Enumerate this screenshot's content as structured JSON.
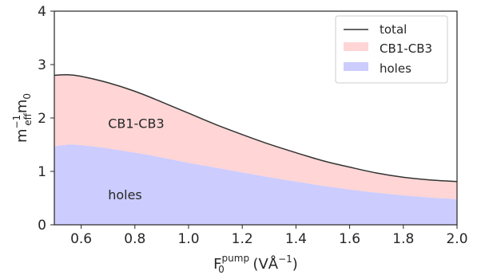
{
  "chart_data": {
    "type": "area",
    "xlabel": {
      "base": "F",
      "sub": "0",
      "sup": "pump",
      "unit_pre": " (VÅ",
      "unit_sup": "−1",
      "unit_post": ")"
    },
    "ylabel": {
      "base": "m",
      "sub": "eff",
      "sup": "−1",
      "tail": "m",
      "tail_sub": "0"
    },
    "xlim": [
      0.5,
      2.0
    ],
    "ylim": [
      0,
      4
    ],
    "xticks": [
      0.6,
      0.8,
      1.0,
      1.2,
      1.4,
      1.6,
      1.8,
      2.0
    ],
    "xtick_labels": [
      "0.6",
      "0.8",
      "1.0",
      "1.2",
      "1.4",
      "1.6",
      "1.8",
      "2.0"
    ],
    "yticks": [
      0,
      1,
      2,
      3,
      4
    ],
    "ytick_labels": [
      "0",
      "1",
      "2",
      "3",
      "4"
    ],
    "x": [
      0.5,
      0.55,
      0.6,
      0.7,
      0.8,
      0.9,
      1.0,
      1.1,
      1.2,
      1.3,
      1.4,
      1.5,
      1.6,
      1.7,
      1.8,
      1.9,
      2.0
    ],
    "series": [
      {
        "name": "holes",
        "type": "area",
        "color": "#ccccff",
        "values": [
          1.47,
          1.5,
          1.49,
          1.43,
          1.35,
          1.26,
          1.16,
          1.07,
          0.98,
          0.89,
          0.81,
          0.73,
          0.66,
          0.6,
          0.55,
          0.51,
          0.48
        ]
      },
      {
        "name": "CB1-CB3",
        "type": "area",
        "color": "#ffd5d5",
        "values": [
          1.33,
          1.31,
          1.29,
          1.23,
          1.15,
          1.04,
          0.93,
          0.81,
          0.71,
          0.62,
          0.54,
          0.47,
          0.42,
          0.37,
          0.34,
          0.33,
          0.33
        ]
      },
      {
        "name": "total",
        "type": "line",
        "color": "#333333",
        "values": [
          2.8,
          2.81,
          2.78,
          2.66,
          2.5,
          2.3,
          2.09,
          1.88,
          1.69,
          1.51,
          1.35,
          1.2,
          1.08,
          0.97,
          0.89,
          0.84,
          0.81
        ]
      }
    ],
    "annotations": [
      {
        "text": "CB1-CB3",
        "x": 0.7,
        "y": 1.9
      },
      {
        "text": "holes",
        "x": 0.7,
        "y": 0.57
      }
    ],
    "legend": {
      "position": "top-right",
      "entries": [
        "total",
        "CB1-CB3",
        "holes"
      ]
    },
    "grid": false
  }
}
